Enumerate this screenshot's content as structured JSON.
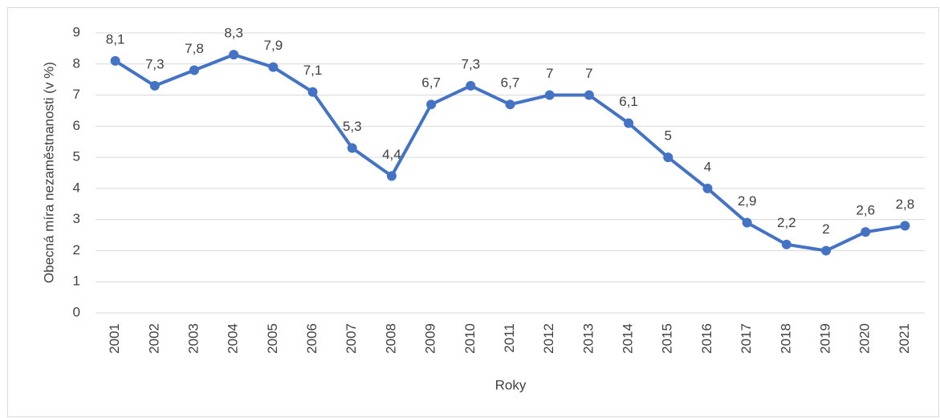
{
  "chart_data": {
    "type": "line",
    "categories": [
      "2001",
      "2002",
      "2003",
      "2004",
      "2005",
      "2006",
      "2007",
      "2008",
      "2009",
      "2010",
      "2011",
      "2012",
      "2013",
      "2014",
      "2015",
      "2016",
      "2017",
      "2018",
      "2019",
      "2020",
      "2021"
    ],
    "series": [
      {
        "color": "#4472c4",
        "values": [
          8.1,
          7.3,
          7.8,
          8.3,
          7.9,
          7.1,
          5.3,
          4.4,
          6.7,
          7.3,
          6.7,
          7,
          7,
          6.1,
          5,
          4,
          2.9,
          2.2,
          2,
          2.6,
          2.8
        ],
        "value_labels": [
          "8,1",
          "7,3",
          "7,8",
          "8,3",
          "7,9",
          "7,1",
          "5,3",
          "4,4",
          "6,7",
          "7,3",
          "6,7",
          "7",
          "7",
          "6,1",
          "5",
          "4",
          "2,9",
          "2,2",
          "2",
          "2,6",
          "2,8"
        ]
      }
    ],
    "x_label": "Roky",
    "y_label": "Obecná míra nezaměstnanosti (v %)",
    "ylim": [
      0,
      9
    ],
    "yticks": [
      0,
      1,
      2,
      3,
      4,
      5,
      6,
      7,
      8,
      9
    ],
    "grid": true
  }
}
